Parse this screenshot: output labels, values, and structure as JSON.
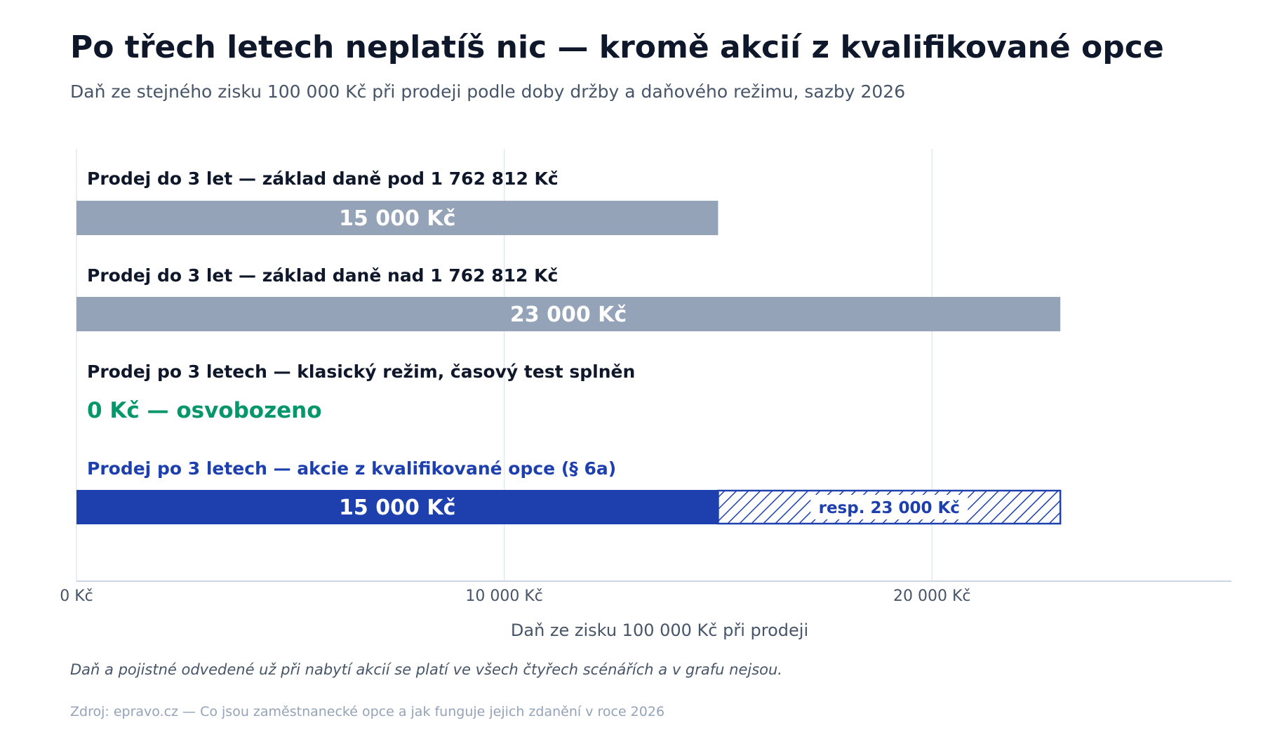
{
  "title": "Po třech letech neplatíš nic — kromě akcií z kvalifikované opce",
  "subtitle": "Daň ze stejného zisku 100 000 Kč při prodeji podle doby držby a daňového režimu, sazby 2026",
  "footnote": "Daň a pojistné odvedené už při nabytí akcií se platí ve všech čtyřech scénářích a v grafu nejsou.",
  "source": "Zdroj: epravo.cz — Co jsou zaměstnanecké opce a jak funguje jejich zdanění v roce 2026",
  "colors": {
    "gray_bar": "#94a3b8",
    "blue_bar": "#1e40af",
    "green_text": "#059669",
    "dark_text": "#0f172a",
    "axis": "#cbd5e1",
    "grid": "#e2e8f0"
  },
  "chart_data": {
    "type": "bar",
    "orientation": "horizontal",
    "xlabel": "Daň ze zisku 100 000 Kč při prodeji",
    "xlim": [
      0,
      27000
    ],
    "xticks": [
      0,
      10000,
      20000
    ],
    "xtick_labels": [
      "0 Kč",
      "10 000 Kč",
      "20 000 Kč"
    ],
    "grid": true,
    "categories": [
      {
        "label": "Prodej do 3 let — základ daně pod 1 762 812 Kč",
        "value": 15000,
        "value_label": "15 000 Kč",
        "color": "#94a3b8",
        "label_color": "#0f172a"
      },
      {
        "label": "Prodej do 3 let — základ daně nad 1 762 812 Kč",
        "value": 23000,
        "value_label": "23 000 Kč",
        "color": "#94a3b8",
        "label_color": "#0f172a"
      },
      {
        "label": "Prodej po 3 letech — klasický režim, časový test splněn",
        "value": 0,
        "value_label": "0 Kč — osvobozeno",
        "color": "#059669",
        "label_color": "#0f172a"
      },
      {
        "label": "Prodej po 3 letech — akcie z kvalifikované opce (§ 6a)",
        "value": 15000,
        "value_label": "15 000 Kč",
        "alt_value": 23000,
        "alt_label": "resp. 23 000 Kč",
        "color": "#1e40af",
        "label_color": "#1e40af"
      }
    ]
  }
}
